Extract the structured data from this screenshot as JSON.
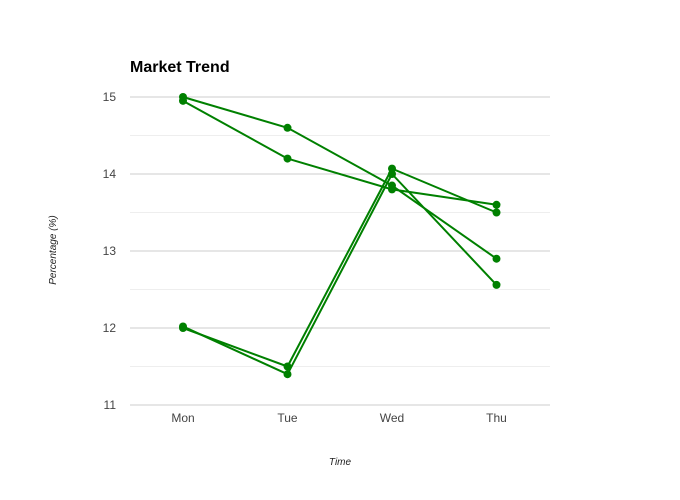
{
  "chart_data": {
    "type": "line",
    "title": "Market Trend",
    "xlabel": "Time",
    "ylabel": "Percentage (%)",
    "categories": [
      "Mon",
      "Tue",
      "Wed",
      "Thu"
    ],
    "ylim": [
      11,
      15
    ],
    "yticks": [
      "11",
      "12",
      "13",
      "14",
      "15"
    ],
    "grid": true,
    "series": [
      {
        "values": [
          15.0,
          14.6,
          13.85,
          12.9
        ]
      },
      {
        "values": [
          14.95,
          14.2,
          13.8,
          13.6
        ]
      },
      {
        "values": [
          12.0,
          11.5,
          14.07,
          13.5
        ]
      },
      {
        "values": [
          12.02,
          11.4,
          14.0,
          12.56
        ]
      }
    ],
    "line_color": "#008000",
    "grid_color": "#cccccc",
    "minor_grid_color": "#eeeeee"
  }
}
